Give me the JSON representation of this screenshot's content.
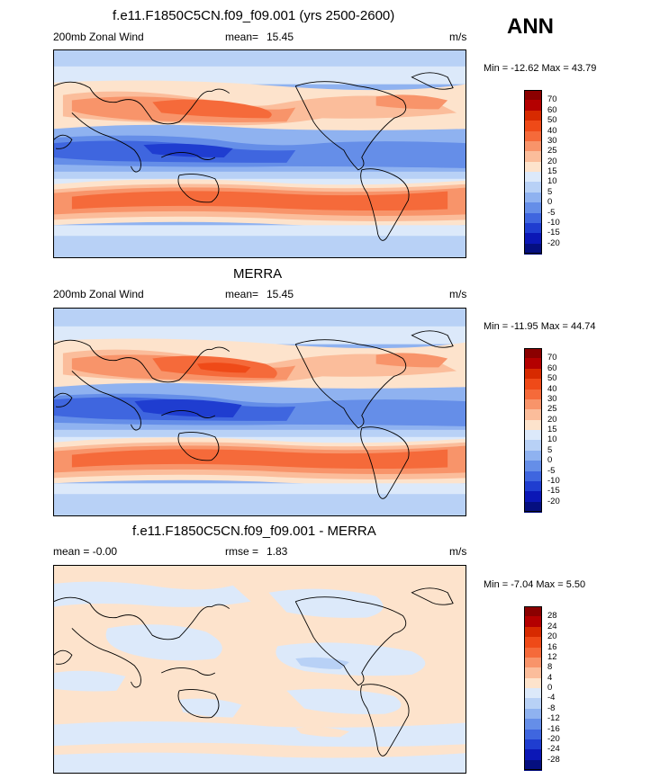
{
  "season": "ANN",
  "units": "m/s",
  "panels": [
    {
      "title": "f.e11.F1850C5CN.f09_f09.001 (yrs 2500-2600)",
      "left_label": "200mb Zonal Wind",
      "mean_label": "mean=",
      "mean_value": "15.45",
      "units": "m/s",
      "min_max": "Min = -12.62 Max =  43.79",
      "levels": [
        "70",
        "60",
        "50",
        "40",
        "30",
        "25",
        "20",
        "15",
        "10",
        "5",
        "0",
        "-5",
        "-10",
        "-15",
        "-20"
      ],
      "colors": [
        "#8b0000",
        "#b40000",
        "#d72a00",
        "#ef4a18",
        "#f56a3a",
        "#f8946a",
        "#fbbd9b",
        "#fde3cc",
        "#dce9fa",
        "#b8d1f6",
        "#8fb2f0",
        "#658ee8",
        "#3f66df",
        "#1f3dd0",
        "#0b17b6",
        "#050f80"
      ]
    },
    {
      "title": "MERRA",
      "left_label": "200mb Zonal Wind",
      "mean_label": "mean=",
      "mean_value": "15.45",
      "units": "m/s",
      "min_max": "Min = -11.95 Max =  44.74",
      "levels": [
        "70",
        "60",
        "50",
        "40",
        "30",
        "25",
        "20",
        "15",
        "10",
        "5",
        "0",
        "-5",
        "-10",
        "-15",
        "-20"
      ],
      "colors": [
        "#8b0000",
        "#b40000",
        "#d72a00",
        "#ef4a18",
        "#f56a3a",
        "#f8946a",
        "#fbbd9b",
        "#fde3cc",
        "#dce9fa",
        "#b8d1f6",
        "#8fb2f0",
        "#658ee8",
        "#3f66df",
        "#1f3dd0",
        "#0b17b6",
        "#050f80"
      ]
    },
    {
      "title": "f.e11.F1850C5CN.f09_f09.001 - MERRA",
      "left_label": "mean =  -0.00",
      "mean_label": "rmse =",
      "mean_value": "1.83",
      "units": "m/s",
      "min_max": "Min = -7.04 Max =  5.50",
      "levels": [
        "28",
        "24",
        "20",
        "16",
        "12",
        "8",
        "4",
        "0",
        "-4",
        "-8",
        "-12",
        "-16",
        "-20",
        "-24",
        "-28"
      ],
      "colors": [
        "#8b0000",
        "#b40000",
        "#d72a00",
        "#ef4a18",
        "#f56a3a",
        "#f8946a",
        "#fbbd9b",
        "#fde3cc",
        "#dce9fa",
        "#b8d1f6",
        "#8fb2f0",
        "#658ee8",
        "#3f66df",
        "#1f3dd0",
        "#0b17b6",
        "#050f80"
      ]
    }
  ],
  "chart_data": [
    {
      "type": "heatmap",
      "title": "f.e11.F1850C5CN.f09_f09.001 (yrs 2500-2600)",
      "variable": "200mb Zonal Wind",
      "mean": 15.45,
      "min": -12.62,
      "max": 43.79,
      "units": "m/s",
      "projection": "cylindrical equidistant, Pacific-centered",
      "colorbar_levels": [
        -20,
        -15,
        -10,
        -5,
        0,
        5,
        10,
        15,
        20,
        25,
        30,
        40,
        50,
        60,
        70
      ]
    },
    {
      "type": "heatmap",
      "title": "MERRA",
      "variable": "200mb Zonal Wind",
      "mean": 15.45,
      "min": -11.95,
      "max": 44.74,
      "units": "m/s",
      "projection": "cylindrical equidistant, Pacific-centered",
      "colorbar_levels": [
        -20,
        -15,
        -10,
        -5,
        0,
        5,
        10,
        15,
        20,
        25,
        30,
        40,
        50,
        60,
        70
      ]
    },
    {
      "type": "heatmap",
      "title": "f.e11.F1850C5CN.f09_f09.001 - MERRA",
      "mean": -0.0,
      "rmse": 1.83,
      "min": -7.04,
      "max": 5.5,
      "units": "m/s",
      "projection": "cylindrical equidistant, Pacific-centered",
      "colorbar_levels": [
        -28,
        -24,
        -20,
        -16,
        -12,
        -8,
        -4,
        0,
        4,
        8,
        12,
        16,
        20,
        24,
        28
      ]
    }
  ]
}
